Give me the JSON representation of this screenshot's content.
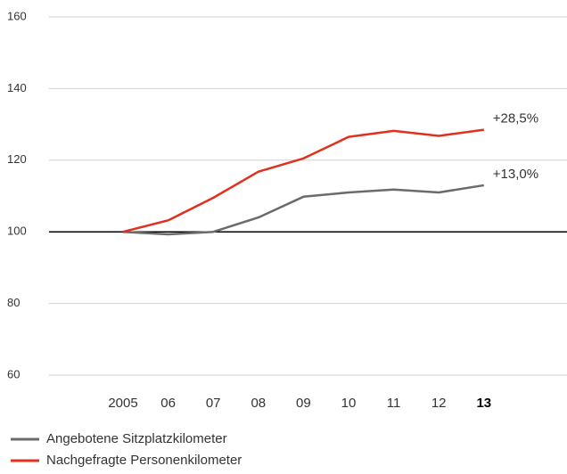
{
  "chart_data": {
    "type": "line",
    "categories": [
      "2005",
      "06",
      "07",
      "08",
      "09",
      "10",
      "11",
      "12",
      "13"
    ],
    "highlight_last_category": true,
    "series": [
      {
        "name": "Angebotene Sitzplatzkilometer",
        "color": "#6b6b6b",
        "values": [
          100,
          99.3,
          100,
          104,
          109.8,
          111,
          111.8,
          111,
          113
        ],
        "end_label": "+13,0%"
      },
      {
        "name": "Nachgefragte Personenkilometer",
        "color": "#e0301e",
        "values": [
          100,
          103.2,
          109.5,
          116.8,
          120.5,
          126.5,
          128.2,
          126.8,
          128.5
        ],
        "end_label": "+28,5%"
      }
    ],
    "ylim": [
      60,
      160
    ],
    "yticks": [
      60,
      80,
      100,
      120,
      140,
      160
    ],
    "grid": true,
    "baseline": 100,
    "legend": "bottom-left"
  }
}
